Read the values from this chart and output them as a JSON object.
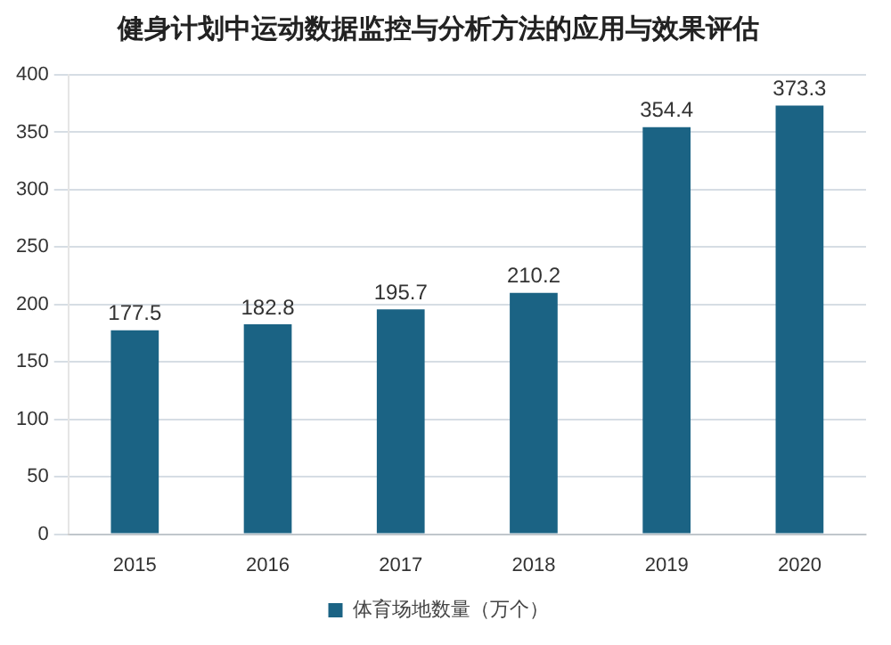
{
  "chart_data": {
    "type": "bar",
    "title": "健身计划中运动数据监控与分析方法的应用与效果评估",
    "categories": [
      "2015",
      "2016",
      "2017",
      "2018",
      "2019",
      "2020"
    ],
    "series": [
      {
        "name": "体育场地数量（万个）",
        "color": "#1b6384",
        "values": [
          177.5,
          182.8,
          195.7,
          210.2,
          354.4,
          373.3
        ]
      }
    ],
    "ylim": [
      0,
      400
    ],
    "yticks": [
      0,
      50,
      100,
      150,
      200,
      250,
      300,
      350,
      400
    ],
    "grid": "y",
    "legend": "bottom",
    "data_labels": true
  }
}
